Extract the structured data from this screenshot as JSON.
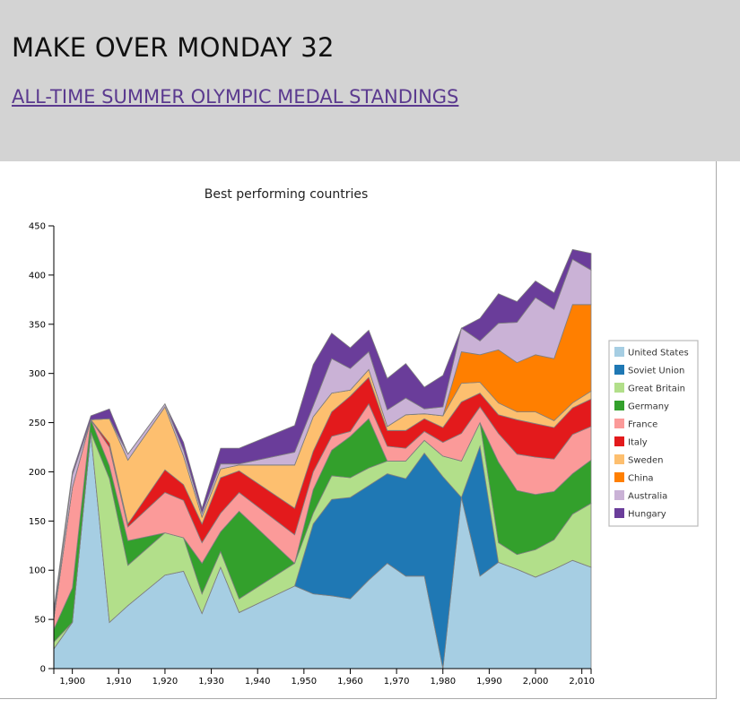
{
  "header": {
    "title": "MAKE OVER MONDAY 32",
    "link_text": "ALL-TIME SUMMER OLYMPIC MEDAL STANDINGS",
    "background": "#d3d3d3"
  },
  "chart_data": {
    "type": "area",
    "stacked": true,
    "title": "Best performing countries",
    "xlabel": "",
    "ylabel": "",
    "xlim": [
      1896,
      2012
    ],
    "ylim": [
      0,
      450
    ],
    "x_ticks": [
      1900,
      1910,
      1920,
      1930,
      1940,
      1950,
      1960,
      1970,
      1980,
      1990,
      2000,
      2010
    ],
    "x_tick_labels": [
      "1,900",
      "1,910",
      "1,920",
      "1,930",
      "1,940",
      "1,950",
      "1,960",
      "1,970",
      "1,980",
      "1,990",
      "2,000",
      "2,010"
    ],
    "y_ticks": [
      0,
      50,
      100,
      150,
      200,
      250,
      300,
      350,
      400,
      450
    ],
    "y_tick_labels": [
      "0",
      "50",
      "100",
      "150",
      "200",
      "250",
      "300",
      "350",
      "400",
      "450"
    ],
    "grid": false,
    "legend_position": "right",
    "x": [
      1896,
      1900,
      1904,
      1908,
      1912,
      1920,
      1924,
      1928,
      1932,
      1936,
      1948,
      1952,
      1956,
      1960,
      1964,
      1968,
      1972,
      1976,
      1980,
      1984,
      1988,
      1992,
      1996,
      2000,
      2004,
      2008,
      2012
    ],
    "series": [
      {
        "name": "United States",
        "color": "#a6cee3",
        "values": [
          20,
          47,
          239,
          47,
          64,
          95,
          99,
          56,
          103,
          57,
          84,
          76,
          74,
          71,
          90,
          107,
          94,
          94,
          0,
          174,
          94,
          108,
          101,
          93,
          101,
          110,
          103
        ]
      },
      {
        "name": "Soviet Union",
        "color": "#1f78b4",
        "values": [
          0,
          0,
          0,
          0,
          0,
          0,
          0,
          0,
          0,
          0,
          0,
          71,
          98,
          103,
          96,
          91,
          99,
          125,
          195,
          0,
          132,
          0,
          0,
          0,
          0,
          0,
          0
        ]
      },
      {
        "name": "Great Britain",
        "color": "#b2df8a",
        "values": [
          7,
          0,
          1,
          146,
          41,
          43,
          34,
          20,
          16,
          14,
          23,
          11,
          24,
          20,
          18,
          13,
          18,
          13,
          21,
          37,
          24,
          20,
          15,
          28,
          30,
          47,
          65
        ]
      },
      {
        "name": "Germany",
        "color": "#33a02c",
        "values": [
          13,
          35,
          13,
          13,
          25,
          0,
          0,
          31,
          20,
          89,
          0,
          24,
          26,
          42,
          50,
          0,
          0,
          0,
          0,
          0,
          0,
          82,
          65,
          56,
          49,
          41,
          44
        ]
      },
      {
        "name": "France",
        "color": "#fb9a99",
        "values": [
          11,
          102,
          0,
          19,
          14,
          41,
          38,
          21,
          19,
          19,
          29,
          18,
          14,
          5,
          15,
          15,
          13,
          9,
          14,
          28,
          16,
          29,
          37,
          38,
          33,
          40,
          34
        ]
      },
      {
        "name": "Italy",
        "color": "#e31a1c",
        "values": [
          0,
          0,
          0,
          4,
          3,
          23,
          16,
          19,
          36,
          22,
          27,
          21,
          25,
          36,
          27,
          16,
          18,
          13,
          15,
          32,
          14,
          19,
          35,
          34,
          32,
          27,
          28
        ]
      },
      {
        "name": "Sweden",
        "color": "#fdbf6f",
        "values": [
          0,
          0,
          0,
          25,
          65,
          64,
          29,
          7,
          9,
          6,
          44,
          35,
          19,
          6,
          8,
          4,
          16,
          5,
          12,
          19,
          11,
          12,
          8,
          12,
          7,
          5,
          8
        ]
      },
      {
        "name": "China",
        "color": "#ff7f00",
        "values": [
          0,
          0,
          0,
          0,
          0,
          0,
          0,
          0,
          0,
          0,
          0,
          0,
          0,
          0,
          0,
          0,
          0,
          0,
          0,
          32,
          28,
          54,
          50,
          58,
          63,
          100,
          88
        ]
      },
      {
        "name": "Australia",
        "color": "#cab2d6",
        "values": [
          2,
          13,
          0,
          0,
          6,
          3,
          6,
          4,
          5,
          1,
          13,
          11,
          35,
          22,
          18,
          17,
          17,
          5,
          9,
          24,
          14,
          27,
          41,
          58,
          50,
          46,
          35
        ]
      },
      {
        "name": "Hungary",
        "color": "#6a3d9a",
        "values": [
          7,
          3,
          4,
          10,
          0,
          0,
          8,
          5,
          16,
          16,
          27,
          42,
          26,
          21,
          22,
          32,
          35,
          22,
          32,
          0,
          23,
          30,
          21,
          17,
          17,
          10,
          17
        ]
      }
    ]
  }
}
